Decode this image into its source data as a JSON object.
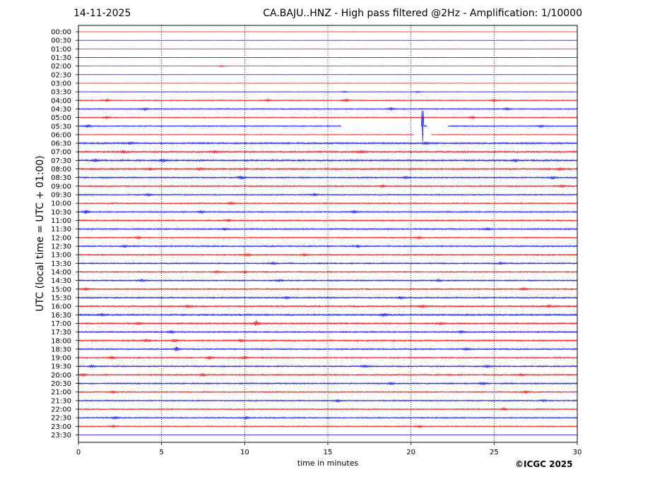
{
  "header": {
    "date": "14-11-2025",
    "title": "CA.BAJU..HNZ - High pass filtered @2Hz - Amplification: 1/10000"
  },
  "footer": {
    "copyright": "©ICGC 2025"
  },
  "chart_data": {
    "type": "line",
    "title": "CA.BAJU..HNZ - High pass filtered @2Hz - Amplification: 1/10000",
    "xlabel": "time in minutes",
    "ylabel": "UTC (local time = UTC + 01:00)",
    "xlim": [
      0,
      30
    ],
    "x_ticks": [
      0,
      5,
      10,
      15,
      20,
      25,
      30
    ],
    "y_tick_labels": [
      "00:00",
      "00:30",
      "01:00",
      "01:30",
      "02:00",
      "02:30",
      "03:00",
      "03:30",
      "04:00",
      "04:30",
      "05:00",
      "05:30",
      "06:00",
      "06:30",
      "07:00",
      "07:30",
      "08:00",
      "08:30",
      "09:00",
      "09:30",
      "10:00",
      "10:30",
      "11:00",
      "11:30",
      "12:00",
      "12:30",
      "13:00",
      "13:30",
      "14:00",
      "14:30",
      "15:00",
      "15:30",
      "16:00",
      "16:30",
      "17:00",
      "17:30",
      "18:00",
      "18:30",
      "19:00",
      "19:30",
      "20:00",
      "20:30",
      "21:00",
      "21:30",
      "22:00",
      "22:30",
      "23:00",
      "23:30"
    ],
    "trace_colors": [
      "#ff0000",
      "#0000ff"
    ],
    "vertical_grid": "dotted",
    "traces": [
      {
        "label": "00:00",
        "color": "#ff0000",
        "noise": 0.2
      },
      {
        "label": "00:30",
        "color": "#0000ff",
        "noise": 0.2
      },
      {
        "label": "01:00",
        "color": "#ff0000",
        "noise": 0.2
      },
      {
        "label": "01:30",
        "color": "#0000ff",
        "noise": 0.25
      },
      {
        "label": "02:00",
        "color": "#ff0000",
        "noise": 0.25,
        "bursts": [
          [
            8.6,
            1.5
          ]
        ]
      },
      {
        "label": "02:30",
        "color": "#0000ff",
        "noise": 0.2
      },
      {
        "label": "03:00",
        "color": "#ff0000",
        "noise": 0.25
      },
      {
        "label": "03:30",
        "color": "#0000ff",
        "noise": 0.35,
        "bursts": [
          [
            16.0,
            1.2
          ],
          [
            20.4,
            1.2
          ]
        ]
      },
      {
        "label": "04:00",
        "color": "#ff0000",
        "noise": 0.8,
        "bursts": [
          [
            1.7,
            2.2
          ],
          [
            11.4,
            2
          ],
          [
            16.1,
            2.5
          ],
          [
            25.0,
            2
          ]
        ]
      },
      {
        "label": "04:30",
        "color": "#0000ff",
        "noise": 0.8,
        "bursts": [
          [
            4.0,
            1.8
          ],
          [
            18.8,
            2.2
          ],
          [
            25.8,
            2
          ]
        ]
      },
      {
        "label": "05:00",
        "color": "#ff0000",
        "noise": 0.8,
        "bursts": [
          [
            1.7,
            2
          ],
          [
            23.7,
            2
          ]
        ]
      },
      {
        "label": "05:30",
        "color": "#0000ff",
        "noise": 0.8,
        "bursts": [
          [
            0.6,
            2.2
          ],
          [
            27.8,
            1.8
          ]
        ],
        "gaps": [
          [
            15.8,
            20.6
          ],
          [
            21.0,
            22.2
          ]
        ],
        "spikes": [
          [
            20.7,
            22
          ]
        ]
      },
      {
        "label": "06:00",
        "color": "#ff0000",
        "noise": 0.5,
        "gaps": [
          [
            20.2,
            20.65
          ],
          [
            20.8,
            21.2
          ]
        ]
      },
      {
        "label": "06:30",
        "color": "#0000ff",
        "noise": 1.2,
        "bursts": [
          [
            3.1,
            2
          ],
          [
            20.9,
            2
          ]
        ]
      },
      {
        "label": "07:00",
        "color": "#ff0000",
        "noise": 1.2,
        "bursts": [
          [
            2.7,
            2
          ],
          [
            8.2,
            2
          ],
          [
            17.0,
            2.5
          ]
        ]
      },
      {
        "label": "07:30",
        "color": "#0000ff",
        "noise": 1.2,
        "bursts": [
          [
            1.0,
            2
          ],
          [
            5.1,
            2.5
          ],
          [
            26.3,
            2
          ]
        ]
      },
      {
        "label": "08:00",
        "color": "#ff0000",
        "noise": 1.2,
        "bursts": [
          [
            4.3,
            2
          ],
          [
            7.3,
            2
          ],
          [
            29.0,
            2
          ]
        ]
      },
      {
        "label": "08:30",
        "color": "#0000ff",
        "noise": 1.0,
        "bursts": [
          [
            9.8,
            3.5
          ],
          [
            19.7,
            2
          ],
          [
            28.5,
            2
          ]
        ]
      },
      {
        "label": "09:00",
        "color": "#ff0000",
        "noise": 1.0,
        "bursts": [
          [
            18.3,
            2
          ],
          [
            29.1,
            2
          ]
        ]
      },
      {
        "label": "09:30",
        "color": "#0000ff",
        "noise": 0.9,
        "bursts": [
          [
            4.2,
            2
          ],
          [
            14.2,
            2
          ]
        ]
      },
      {
        "label": "10:00",
        "color": "#ff0000",
        "noise": 0.9,
        "bursts": [
          [
            9.2,
            2
          ]
        ]
      },
      {
        "label": "10:30",
        "color": "#0000ff",
        "noise": 0.9,
        "bursts": [
          [
            0.45,
            3.5
          ],
          [
            7.4,
            2
          ],
          [
            16.6,
            2
          ]
        ]
      },
      {
        "label": "11:00",
        "color": "#ff0000",
        "noise": 1.0,
        "bursts": [
          [
            9.0,
            1.8
          ]
        ]
      },
      {
        "label": "11:30",
        "color": "#0000ff",
        "noise": 1.0,
        "bursts": [
          [
            8.8,
            1.8
          ],
          [
            24.6,
            2.2
          ]
        ]
      },
      {
        "label": "12:00",
        "color": "#ff0000",
        "noise": 0.9,
        "bursts": [
          [
            3.6,
            1.8
          ],
          [
            20.5,
            1.8
          ]
        ]
      },
      {
        "label": "12:30",
        "color": "#0000ff",
        "noise": 1.0,
        "bursts": [
          [
            2.8,
            2
          ],
          [
            16.8,
            2.2
          ]
        ]
      },
      {
        "label": "13:00",
        "color": "#ff0000",
        "noise": 1.0,
        "bursts": [
          [
            10.2,
            2
          ],
          [
            13.6,
            1.8
          ]
        ]
      },
      {
        "label": "13:30",
        "color": "#0000ff",
        "noise": 1.0,
        "bursts": [
          [
            11.7,
            2
          ],
          [
            25.4,
            1.8
          ]
        ]
      },
      {
        "label": "14:00",
        "color": "#ff0000",
        "noise": 0.9,
        "bursts": [
          [
            8.3,
            1.8
          ],
          [
            10.0,
            1.8
          ]
        ]
      },
      {
        "label": "14:30",
        "color": "#0000ff",
        "noise": 1.0,
        "bursts": [
          [
            3.8,
            2
          ],
          [
            12.1,
            1.8
          ],
          [
            21.7,
            1.8
          ]
        ]
      },
      {
        "label": "15:00",
        "color": "#ff0000",
        "noise": 1.0,
        "bursts": [
          [
            0.4,
            2
          ],
          [
            26.8,
            2.2
          ]
        ]
      },
      {
        "label": "15:30",
        "color": "#0000ff",
        "noise": 1.0,
        "bursts": [
          [
            12.5,
            2
          ],
          [
            19.4,
            1.8
          ]
        ]
      },
      {
        "label": "16:00",
        "color": "#ff0000",
        "noise": 1.1,
        "bursts": [
          [
            6.6,
            2
          ],
          [
            20.7,
            2
          ],
          [
            28.3,
            2
          ]
        ]
      },
      {
        "label": "16:30",
        "color": "#0000ff",
        "noise": 1.2,
        "bursts": [
          [
            1.4,
            1.8
          ],
          [
            18.4,
            2.2
          ]
        ]
      },
      {
        "label": "17:00",
        "color": "#ff0000",
        "noise": 1.1,
        "bursts": [
          [
            3.6,
            2
          ],
          [
            10.7,
            4.5
          ],
          [
            21.8,
            2
          ]
        ]
      },
      {
        "label": "17:30",
        "color": "#0000ff",
        "noise": 1.0,
        "bursts": [
          [
            5.6,
            2
          ],
          [
            23.0,
            1.8
          ]
        ]
      },
      {
        "label": "18:00",
        "color": "#ff0000",
        "noise": 1.1,
        "bursts": [
          [
            4.1,
            2
          ],
          [
            5.8,
            2.2
          ],
          [
            9.8,
            2
          ]
        ]
      },
      {
        "label": "18:30",
        "color": "#0000ff",
        "noise": 1.0,
        "bursts": [
          [
            5.9,
            3.5
          ],
          [
            23.3,
            1.8
          ]
        ]
      },
      {
        "label": "19:00",
        "color": "#ff0000",
        "noise": 1.0,
        "bursts": [
          [
            2.0,
            2
          ],
          [
            7.9,
            2
          ],
          [
            10.0,
            2.5
          ]
        ]
      },
      {
        "label": "19:30",
        "color": "#0000ff",
        "noise": 1.0,
        "bursts": [
          [
            0.8,
            2
          ],
          [
            17.2,
            2
          ],
          [
            24.6,
            1.8
          ]
        ]
      },
      {
        "label": "20:00",
        "color": "#ff0000",
        "noise": 1.0,
        "bursts": [
          [
            0.3,
            1.8
          ],
          [
            7.5,
            2
          ],
          [
            26.6,
            1.8
          ]
        ]
      },
      {
        "label": "20:30",
        "color": "#0000ff",
        "noise": 1.0,
        "bursts": [
          [
            18.8,
            2
          ],
          [
            24.3,
            2.2
          ]
        ]
      },
      {
        "label": "21:00",
        "color": "#ff0000",
        "noise": 0.9,
        "bursts": [
          [
            2.1,
            1.8
          ],
          [
            26.9,
            1.8
          ]
        ]
      },
      {
        "label": "21:30",
        "color": "#0000ff",
        "noise": 0.9,
        "bursts": [
          [
            15.6,
            2
          ],
          [
            28.0,
            1.8
          ]
        ]
      },
      {
        "label": "22:00",
        "color": "#ff0000",
        "noise": 0.9,
        "bursts": [
          [
            25.6,
            2
          ]
        ]
      },
      {
        "label": "22:30",
        "color": "#0000ff",
        "noise": 0.9,
        "bursts": [
          [
            2.2,
            1.8
          ],
          [
            10.1,
            1.8
          ]
        ]
      },
      {
        "label": "23:00",
        "color": "#ff0000",
        "noise": 0.8,
        "bursts": [
          [
            2.1,
            1.8
          ],
          [
            20.5,
            1.8
          ]
        ]
      },
      {
        "label": "23:30",
        "color": "#0000ff",
        "noise": 0.0
      }
    ]
  }
}
